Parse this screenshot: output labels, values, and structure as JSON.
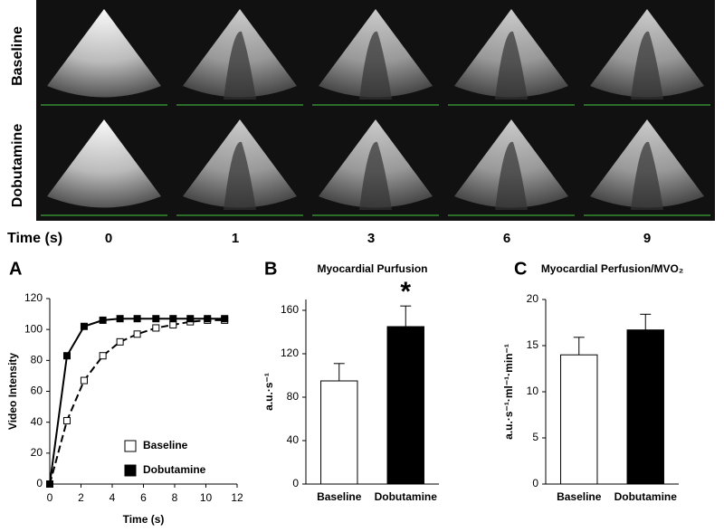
{
  "image_grid": {
    "row_labels": [
      "Baseline",
      "Dobutamine"
    ],
    "time_label": "Time (s)",
    "times": [
      0,
      1,
      3,
      6,
      9
    ]
  },
  "chart_data": [
    {
      "type": "line",
      "panel": "A",
      "x_label": "Time (s)",
      "y_label": "Video Intensity",
      "x": [
        0,
        1.1,
        2.2,
        3.4,
        4.5,
        5.6,
        6.8,
        7.9,
        9,
        10.1,
        11.2
      ],
      "series": [
        {
          "name": "Baseline",
          "color": "#000000",
          "marker_fill": "#ffffff",
          "line_style": "dashed",
          "values": [
            0,
            41,
            67,
            83,
            92,
            97,
            101,
            103,
            105,
            106,
            106
          ]
        },
        {
          "name": "Dobutamine",
          "color": "#000000",
          "marker_fill": "#000000",
          "line_style": "solid",
          "values": [
            0,
            83,
            102,
            106,
            107,
            107,
            107,
            107,
            107,
            107,
            107
          ]
        }
      ],
      "xlim": [
        0,
        12
      ],
      "xticks": [
        0,
        2,
        4,
        6,
        8,
        10,
        12
      ],
      "ylim": [
        0,
        120
      ],
      "yticks": [
        0,
        20,
        40,
        60,
        80,
        100,
        120
      ],
      "legend": "lower-right"
    },
    {
      "type": "bar",
      "panel": "B",
      "title": "Myocardial Purfusion",
      "y_label": "a.u.·s⁻¹",
      "categories": [
        "Baseline",
        "Dobutamine"
      ],
      "values": [
        95,
        145
      ],
      "errors": [
        16,
        19
      ],
      "colors": [
        "#ffffff",
        "#000000"
      ],
      "annotation": "*",
      "ylim": [
        0,
        170
      ],
      "yticks": [
        0,
        40,
        80,
        120,
        160
      ]
    },
    {
      "type": "bar",
      "panel": "C",
      "title": "Myocardial Perfusion/MVO₂",
      "y_label": "a.u.·s⁻¹·ml⁻¹·min⁻¹",
      "categories": [
        "Baseline",
        "Dobutamine"
      ],
      "values": [
        14,
        16.7
      ],
      "errors": [
        1.9,
        1.7
      ],
      "colors": [
        "#ffffff",
        "#000000"
      ],
      "ylim": [
        0,
        20
      ],
      "yticks": [
        0,
        5,
        10,
        15,
        20
      ]
    }
  ]
}
